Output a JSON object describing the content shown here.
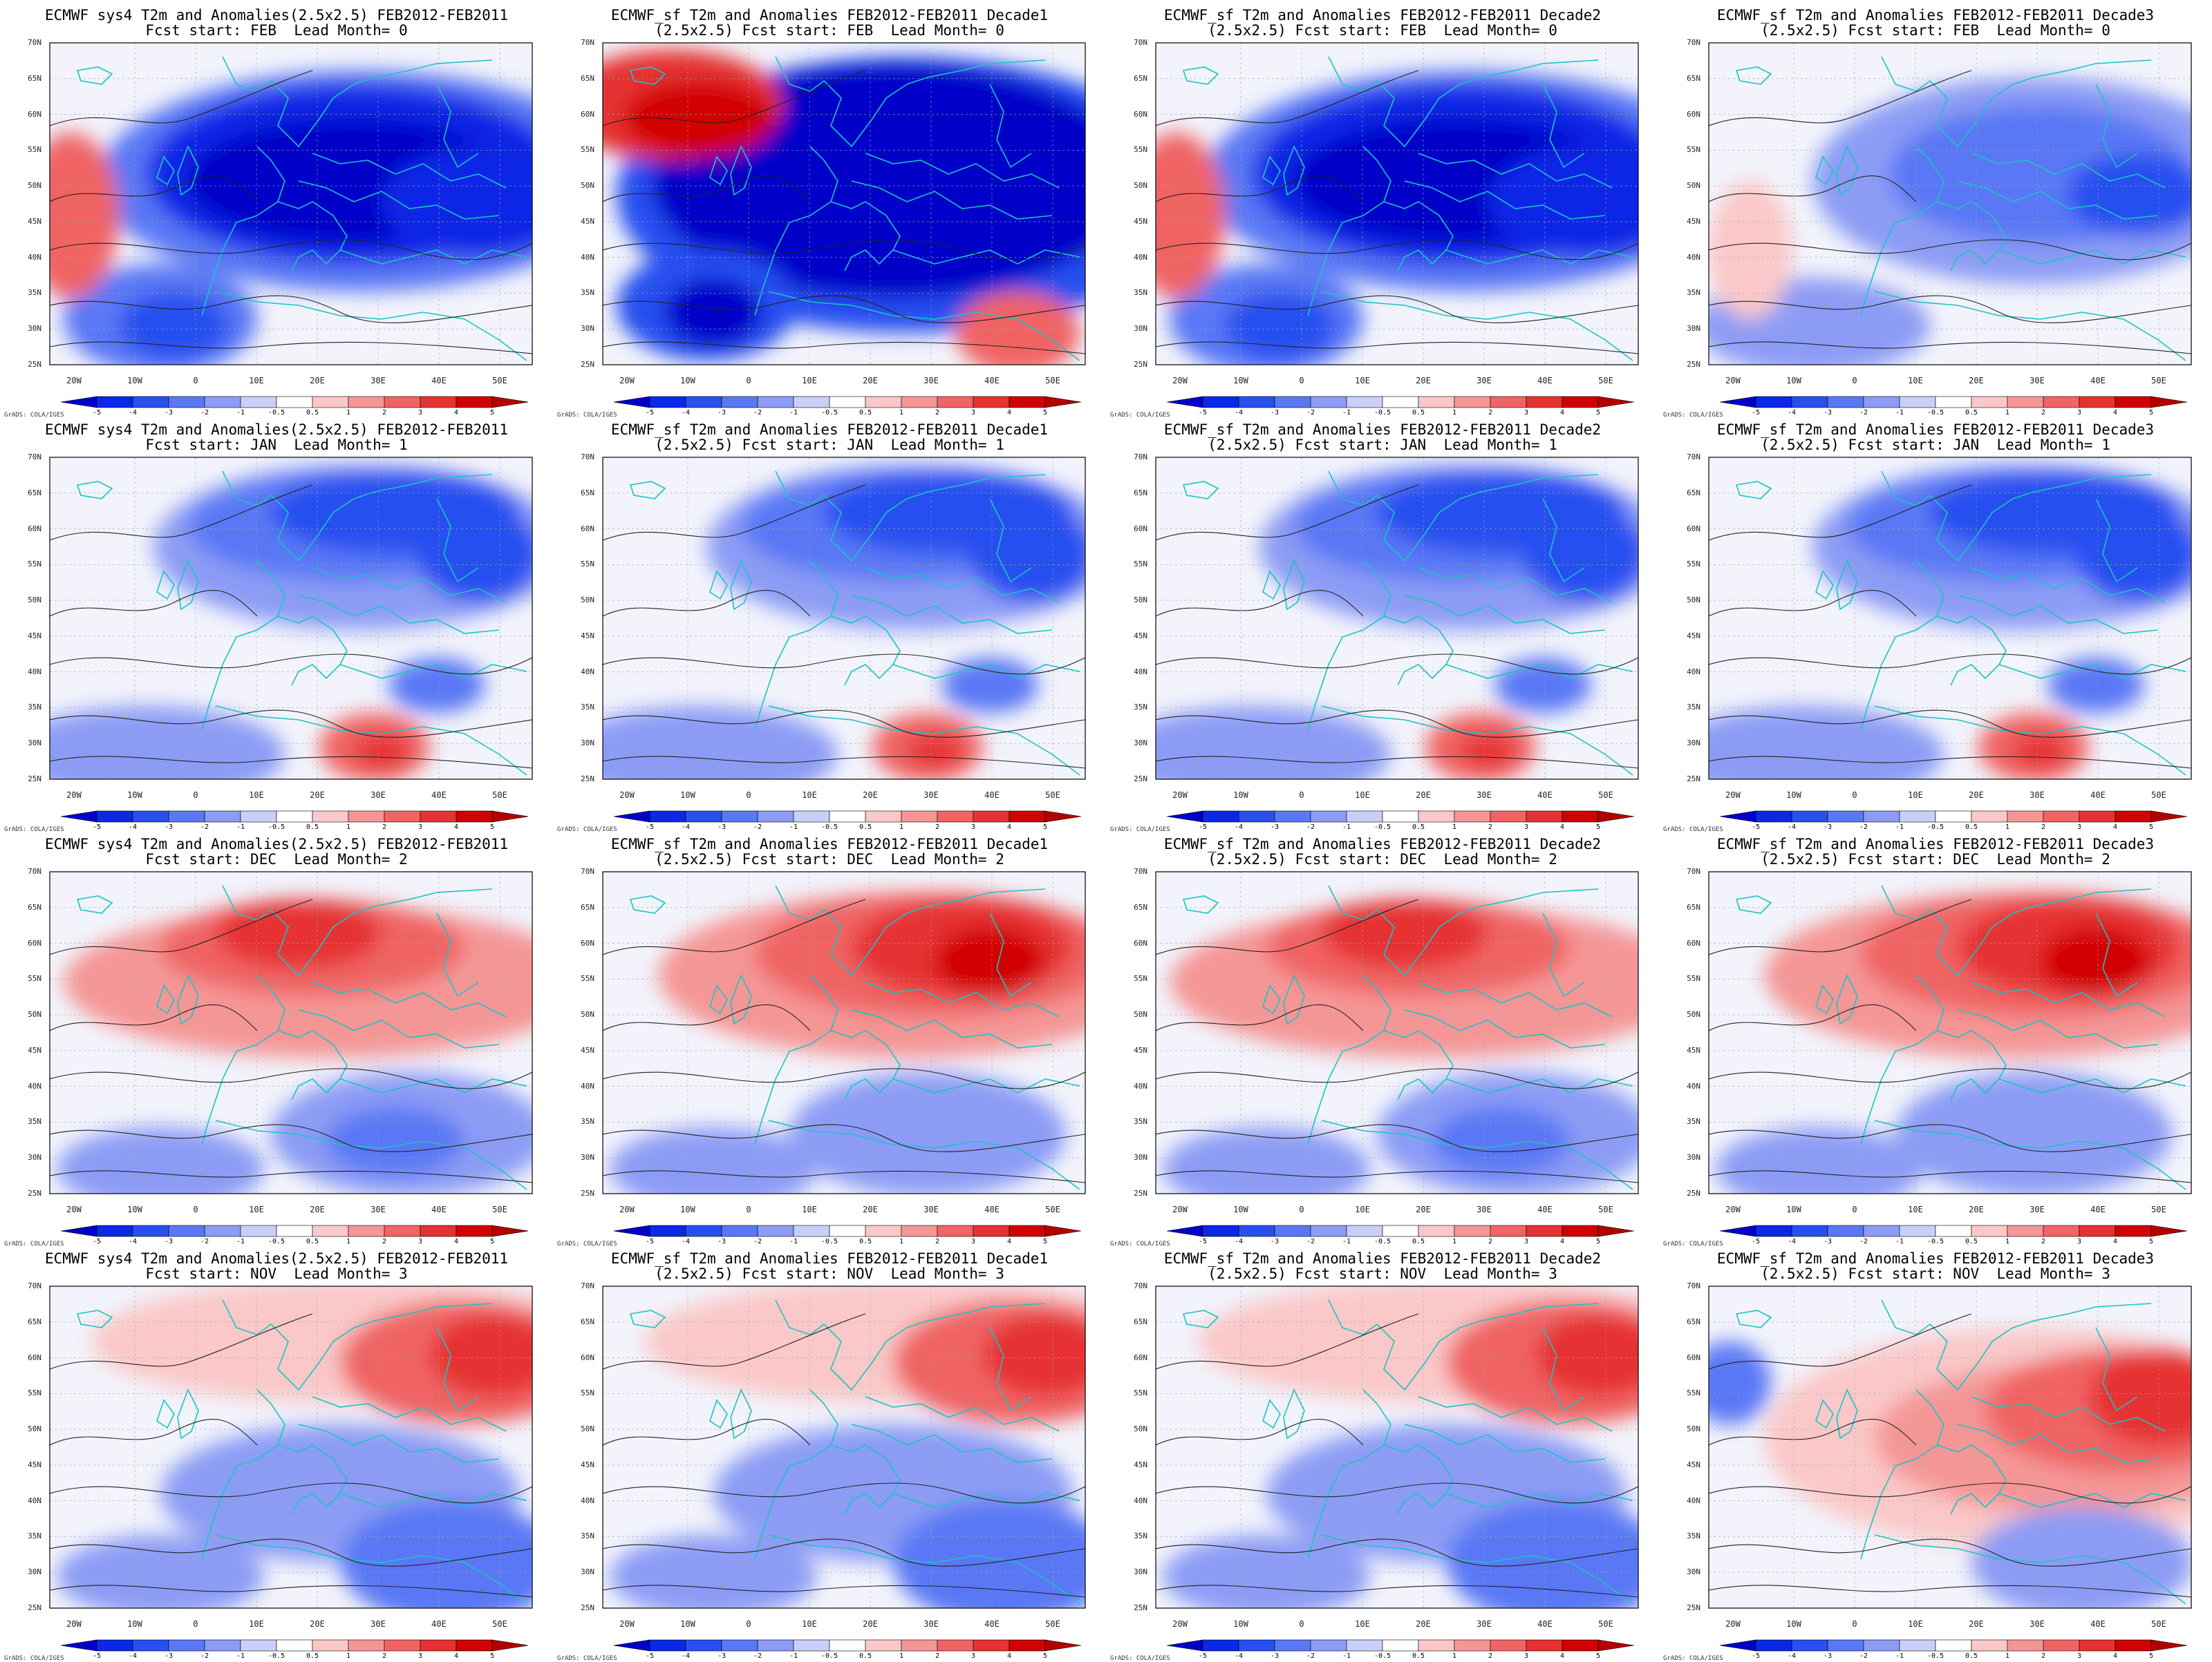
{
  "lat_labels": [
    "70N",
    "65N",
    "60N",
    "55N",
    "50N",
    "45N",
    "40N",
    "35N",
    "30N",
    "25N"
  ],
  "lon_labels": [
    "20W",
    "10W",
    "0",
    "10E",
    "20E",
    "30E",
    "40E",
    "50E"
  ],
  "colorbar": {
    "labels": [
      "-5",
      "-4",
      "-3",
      "-2",
      "-1",
      "-0.5",
      "0.5",
      "1",
      "2",
      "3",
      "4",
      "5"
    ],
    "colors": [
      "#0000c8",
      "#0a28e6",
      "#2850f0",
      "#5a78f5",
      "#8c9cf5",
      "#c8d0fa",
      "#ffffff",
      "#fac8c8",
      "#f59696",
      "#f06464",
      "#e63232",
      "#d20000",
      "#b40000"
    ]
  },
  "credit": "GrADS: COLA/IGES",
  "panels": [
    {
      "title": [
        "ECMWF sys4 T2m and Anomalies(2.5x2.5) FEB2012-FEB2011",
        "Fcst start: FEB  Lead Month= 0"
      ],
      "pattern": "cold-strong"
    },
    {
      "title": [
        "ECMWF_sf T2m and Anomalies FEB2012-FEB2011 Decade1",
        "(2.5x2.5) Fcst start: FEB  Lead Month= 0"
      ],
      "pattern": "cold-extreme"
    },
    {
      "title": [
        "ECMWF_sf T2m and Anomalies FEB2012-FEB2011 Decade2",
        "(2.5x2.5) Fcst start: FEB  Lead Month= 0"
      ],
      "pattern": "cold-strong"
    },
    {
      "title": [
        "ECMWF_sf T2m and Anomalies FEB2012-FEB2011 Decade3",
        "(2.5x2.5) Fcst start: FEB  Lead Month= 0"
      ],
      "pattern": "cold-moderate"
    },
    {
      "title": [
        "ECMWF sys4 T2m and Anomalies(2.5x2.5) FEB2012-FEB2011",
        "Fcst start: JAN  Lead Month= 1"
      ],
      "pattern": "cold-north"
    },
    {
      "title": [
        "ECMWF_sf T2m and Anomalies FEB2012-FEB2011 Decade1",
        "(2.5x2.5) Fcst start: JAN  Lead Month= 1"
      ],
      "pattern": "cold-north"
    },
    {
      "title": [
        "ECMWF_sf T2m and Anomalies FEB2012-FEB2011 Decade2",
        "(2.5x2.5) Fcst start: JAN  Lead Month= 1"
      ],
      "pattern": "cold-north"
    },
    {
      "title": [
        "ECMWF_sf T2m and Anomalies FEB2012-FEB2011 Decade3",
        "(2.5x2.5) Fcst start: JAN  Lead Month= 1"
      ],
      "pattern": "cold-north"
    },
    {
      "title": [
        "ECMWF sys4 T2m and Anomalies(2.5x2.5) FEB2012-FEB2011",
        "Fcst start: DEC  Lead Month= 2"
      ],
      "pattern": "warm-north"
    },
    {
      "title": [
        "ECMWF_sf T2m and Anomalies FEB2012-FEB2011 Decade1",
        "(2.5x2.5) Fcst start: DEC  Lead Month= 2"
      ],
      "pattern": "warm-north-strong"
    },
    {
      "title": [
        "ECMWF_sf T2m and Anomalies FEB2012-FEB2011 Decade2",
        "(2.5x2.5) Fcst start: DEC  Lead Month= 2"
      ],
      "pattern": "warm-north"
    },
    {
      "title": [
        "ECMWF_sf T2m and Anomalies FEB2012-FEB2011 Decade3",
        "(2.5x2.5) Fcst start: DEC  Lead Month= 2"
      ],
      "pattern": "warm-north-strong"
    },
    {
      "title": [
        "ECMWF sys4 T2m and Anomalies(2.5x2.5) FEB2012-FEB2011",
        "Fcst start: NOV  Lead Month= 3"
      ],
      "pattern": "warm-northeast"
    },
    {
      "title": [
        "ECMWF_sf T2m and Anomalies FEB2012-FEB2011 Decade1",
        "(2.5x2.5) Fcst start: NOV  Lead Month= 3"
      ],
      "pattern": "warm-northeast"
    },
    {
      "title": [
        "ECMWF_sf T2m and Anomalies FEB2012-FEB2011 Decade2",
        "(2.5x2.5) Fcst start: NOV  Lead Month= 3"
      ],
      "pattern": "warm-northeast"
    },
    {
      "title": [
        "ECMWF_sf T2m and Anomalies FEB2012-FEB2011 Decade3",
        "(2.5x2.5) Fcst start: NOV  Lead Month= 3"
      ],
      "pattern": "warm-central"
    }
  ]
}
